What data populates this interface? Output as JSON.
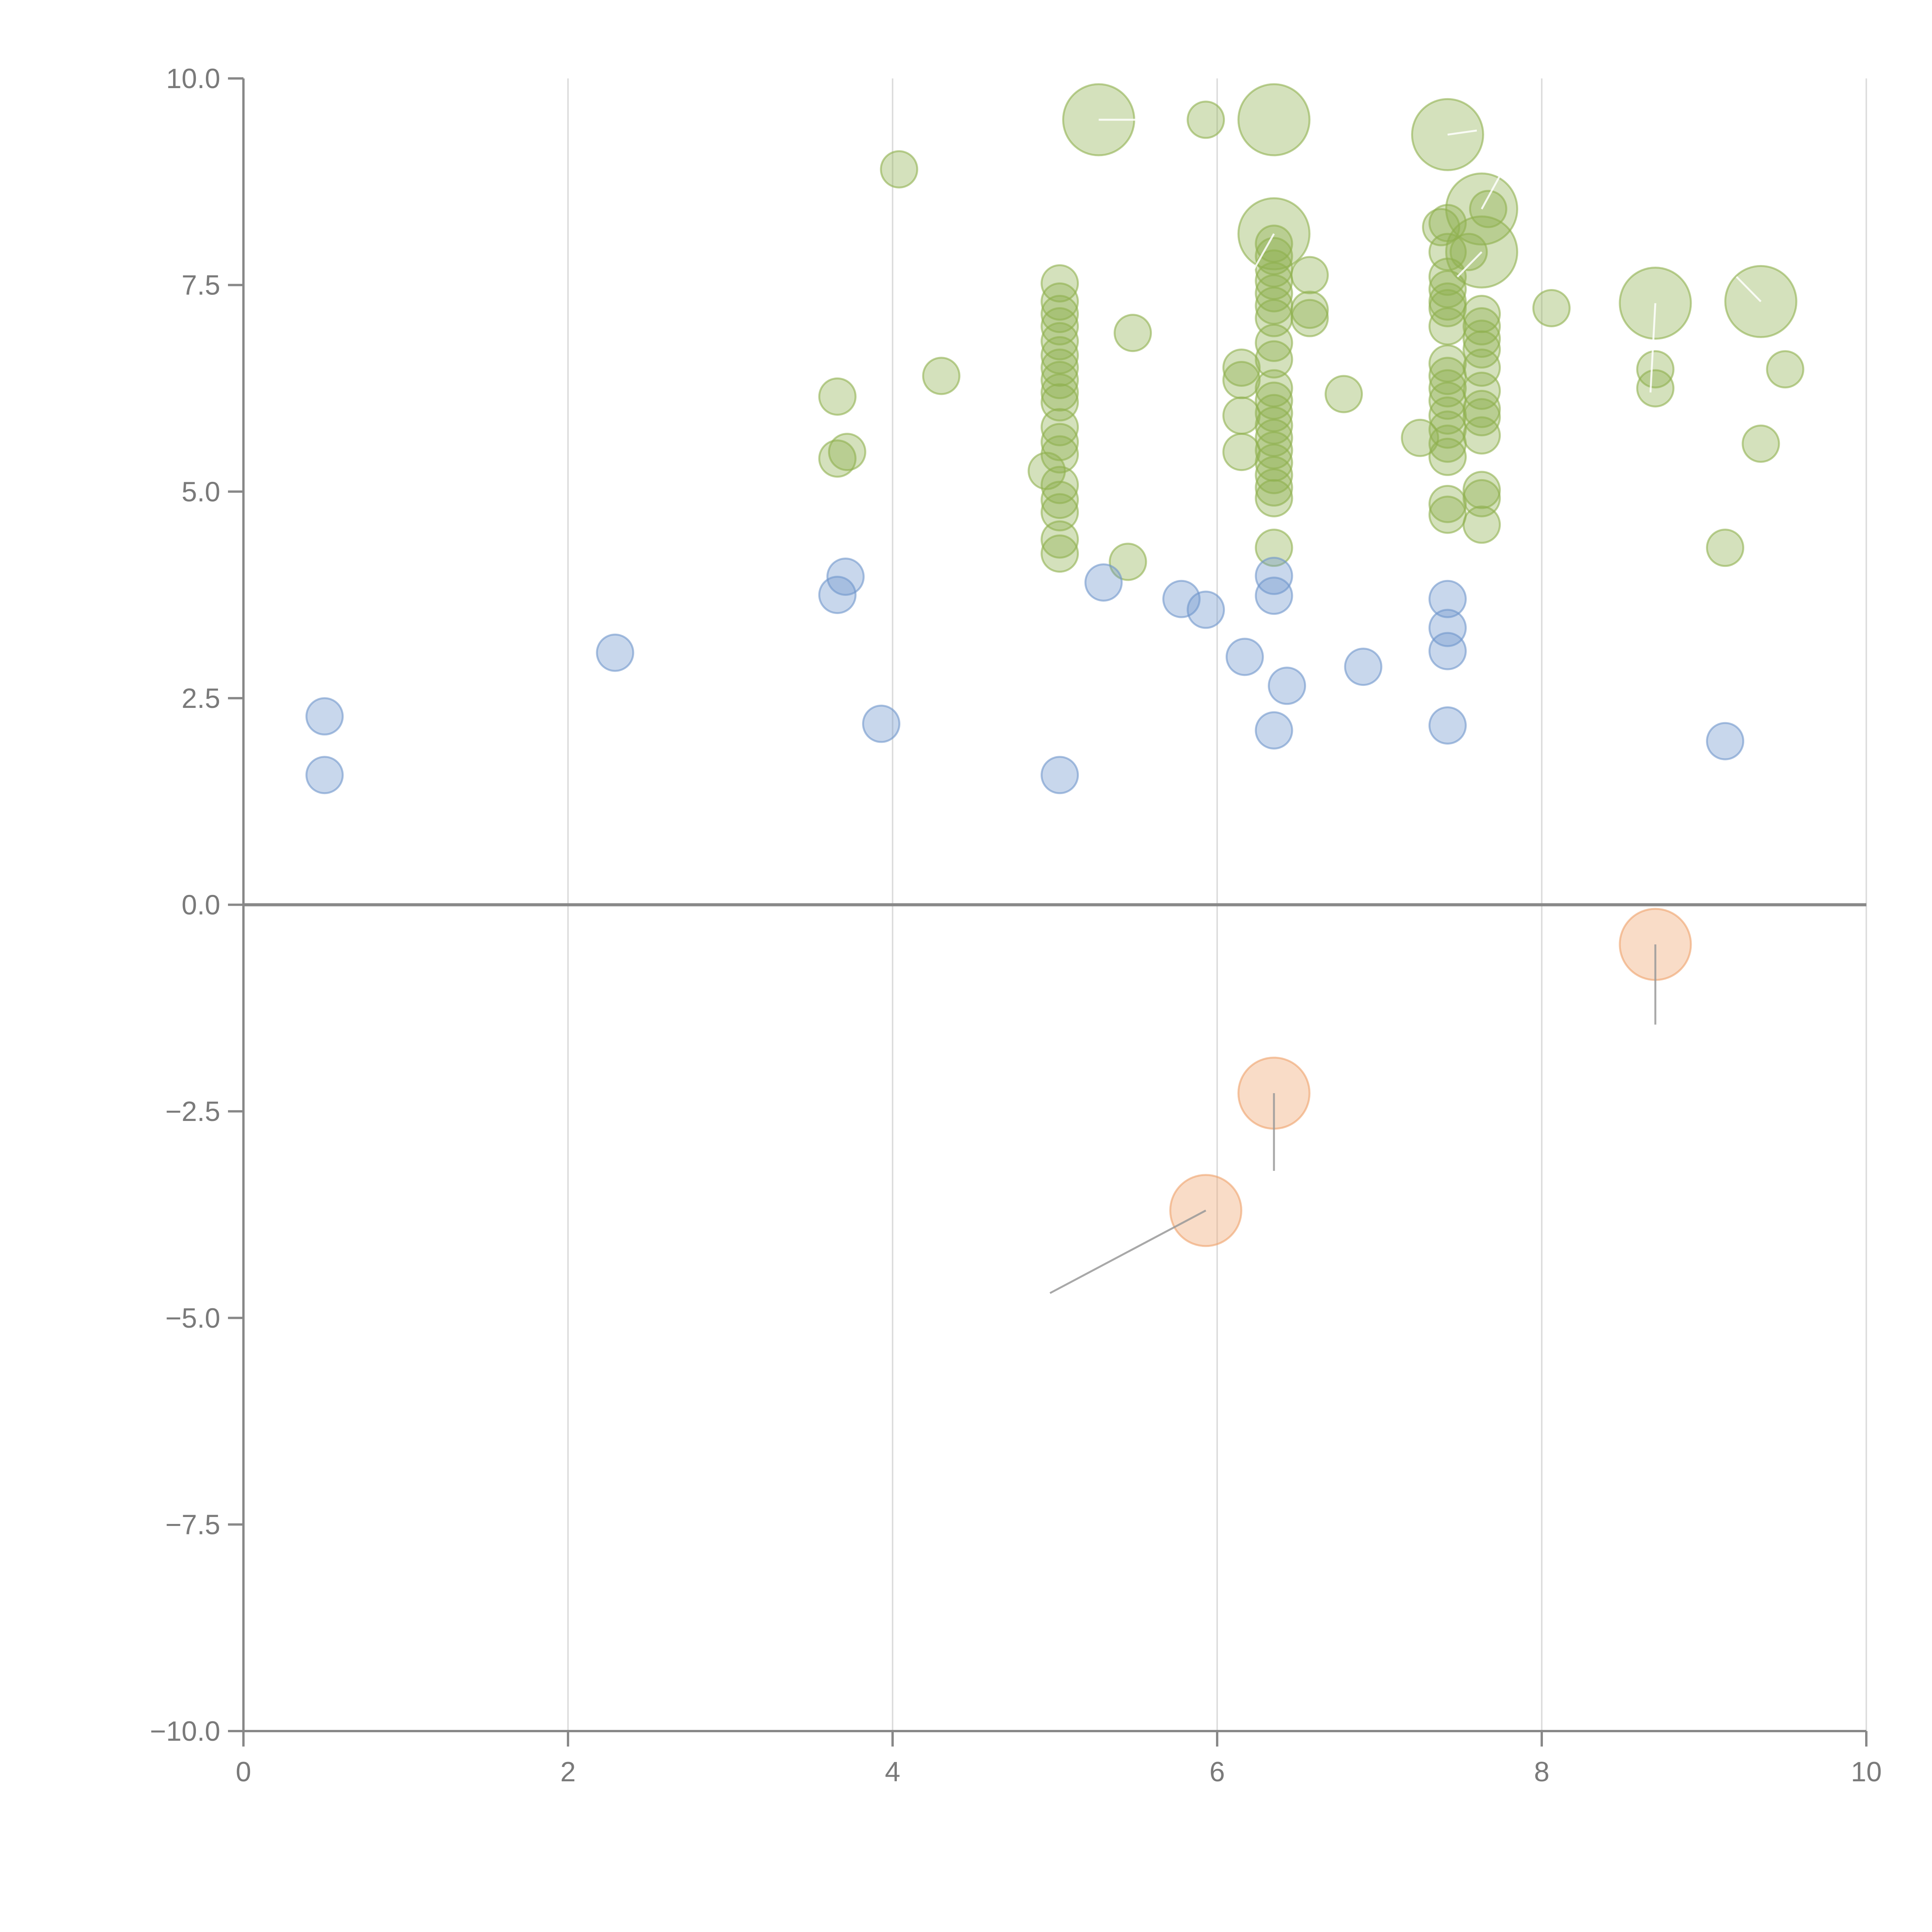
{
  "chart_data": {
    "type": "scatter",
    "xlim": [
      0,
      10
    ],
    "ylim": [
      -10,
      10
    ],
    "x_ticks": [
      0,
      2,
      4,
      6,
      8,
      10
    ],
    "y_ticks": [
      10,
      7.5,
      5,
      2.5,
      0,
      -2.5,
      -5,
      -7.5,
      -10
    ],
    "x_tick_labels": [
      "0",
      "2",
      "4",
      "6",
      "8",
      "10"
    ],
    "y_tick_labels": [
      "10.0",
      "7.5",
      "5.0",
      "2.5",
      "0.0",
      "−2.5",
      "−5.0",
      "−7.5",
      "−10.0"
    ],
    "vertical_grid": true,
    "horizontal_grid": false,
    "zero_line": true,
    "series": [
      {
        "color": "#8fb04f",
        "points": [
          [
            5.27,
            9.5,
            2
          ],
          [
            5.93,
            9.5,
            1
          ],
          [
            6.35,
            9.5,
            2
          ],
          [
            7.42,
            9.32,
            2
          ],
          [
            4.04,
            8.9,
            1
          ],
          [
            7.63,
            8.42,
            2
          ],
          [
            7.63,
            7.9,
            2
          ],
          [
            6.35,
            8.12,
            2
          ],
          [
            7.38,
            8.2,
            1
          ],
          [
            7.42,
            8.25,
            1
          ],
          [
            7.42,
            7.9,
            1
          ],
          [
            7.55,
            7.9,
            1
          ],
          [
            7.67,
            8.42,
            1
          ],
          [
            6.35,
            8.0,
            1
          ],
          [
            6.35,
            7.85,
            1
          ],
          [
            6.35,
            7.7,
            1
          ],
          [
            6.35,
            7.55,
            1
          ],
          [
            6.35,
            7.4,
            1
          ],
          [
            6.35,
            7.25,
            1
          ],
          [
            6.35,
            7.1,
            1
          ],
          [
            6.57,
            7.62,
            1
          ],
          [
            6.57,
            7.2,
            1
          ],
          [
            6.57,
            7.1,
            1
          ],
          [
            5.03,
            7.52,
            1
          ],
          [
            5.03,
            7.3,
            1
          ],
          [
            5.03,
            7.15,
            1
          ],
          [
            5.03,
            7.0,
            1
          ],
          [
            5.03,
            6.82,
            1
          ],
          [
            5.03,
            6.65,
            1
          ],
          [
            5.03,
            6.5,
            1
          ],
          [
            5.03,
            6.35,
            1
          ],
          [
            5.03,
            6.2,
            1
          ],
          [
            5.03,
            6.08,
            1
          ],
          [
            5.03,
            5.78,
            1
          ],
          [
            5.03,
            5.6,
            1
          ],
          [
            5.03,
            5.45,
            1
          ],
          [
            5.03,
            5.08,
            1
          ],
          [
            5.03,
            4.9,
            1
          ],
          [
            5.03,
            4.75,
            1
          ],
          [
            5.03,
            4.42,
            1
          ],
          [
            5.03,
            4.25,
            1
          ],
          [
            4.95,
            5.25,
            1
          ],
          [
            5.48,
            6.92,
            1
          ],
          [
            5.45,
            4.15,
            1
          ],
          [
            4.3,
            6.4,
            1
          ],
          [
            3.66,
            6.15,
            1
          ],
          [
            3.66,
            5.4,
            1
          ],
          [
            3.72,
            5.48,
            1
          ],
          [
            6.15,
            6.5,
            1
          ],
          [
            6.15,
            6.35,
            1
          ],
          [
            6.15,
            5.92,
            1
          ],
          [
            6.15,
            5.48,
            1
          ],
          [
            6.35,
            6.8,
            1
          ],
          [
            6.35,
            6.6,
            1
          ],
          [
            6.35,
            6.25,
            1
          ],
          [
            6.35,
            6.1,
            1
          ],
          [
            6.35,
            5.95,
            1
          ],
          [
            6.35,
            5.8,
            1
          ],
          [
            6.35,
            5.65,
            1
          ],
          [
            6.35,
            5.5,
            1
          ],
          [
            6.35,
            5.35,
            1
          ],
          [
            6.35,
            5.2,
            1
          ],
          [
            6.35,
            5.05,
            1
          ],
          [
            6.35,
            4.92,
            1
          ],
          [
            6.35,
            4.32,
            1
          ],
          [
            6.78,
            6.18,
            1
          ],
          [
            7.25,
            5.65,
            1
          ],
          [
            7.42,
            7.6,
            1
          ],
          [
            7.42,
            7.45,
            1
          ],
          [
            7.42,
            7.3,
            1
          ],
          [
            7.42,
            7.22,
            1
          ],
          [
            7.42,
            7.0,
            1
          ],
          [
            7.42,
            6.55,
            1
          ],
          [
            7.42,
            6.4,
            1
          ],
          [
            7.42,
            6.25,
            1
          ],
          [
            7.42,
            6.1,
            1
          ],
          [
            7.42,
            5.92,
            1
          ],
          [
            7.42,
            5.75,
            1
          ],
          [
            7.42,
            5.58,
            1
          ],
          [
            7.42,
            5.42,
            1
          ],
          [
            7.42,
            4.85,
            1
          ],
          [
            7.42,
            4.72,
            1
          ],
          [
            7.63,
            7.15,
            1
          ],
          [
            7.63,
            7.0,
            1
          ],
          [
            7.63,
            6.85,
            1
          ],
          [
            7.63,
            6.72,
            1
          ],
          [
            7.63,
            6.5,
            1
          ],
          [
            7.63,
            6.22,
            1
          ],
          [
            7.63,
            6.0,
            1
          ],
          [
            7.63,
            5.9,
            1
          ],
          [
            7.63,
            5.68,
            1
          ],
          [
            7.63,
            5.02,
            1
          ],
          [
            7.63,
            4.92,
            1
          ],
          [
            7.63,
            4.6,
            1
          ],
          [
            8.06,
            7.22,
            1
          ],
          [
            8.7,
            7.28,
            2
          ],
          [
            8.7,
            6.48,
            1
          ],
          [
            8.7,
            6.25,
            1
          ],
          [
            9.35,
            7.3,
            2
          ],
          [
            9.5,
            6.48,
            1
          ],
          [
            9.35,
            5.58,
            1
          ],
          [
            9.13,
            4.32,
            1
          ]
        ]
      },
      {
        "color": "#6f96cc",
        "points": [
          [
            0.5,
            2.28,
            1
          ],
          [
            0.5,
            1.57,
            1
          ],
          [
            2.29,
            3.05,
            1
          ],
          [
            3.66,
            3.75,
            1
          ],
          [
            3.71,
            3.97,
            1
          ],
          [
            3.93,
            2.19,
            1
          ],
          [
            5.03,
            1.57,
            1
          ],
          [
            5.3,
            3.9,
            1
          ],
          [
            5.78,
            3.7,
            1
          ],
          [
            5.93,
            3.57,
            1
          ],
          [
            6.17,
            3.0,
            1
          ],
          [
            6.35,
            3.98,
            1
          ],
          [
            6.35,
            3.74,
            1
          ],
          [
            6.43,
            2.65,
            1
          ],
          [
            6.35,
            2.11,
            1
          ],
          [
            6.9,
            2.88,
            1
          ],
          [
            7.42,
            3.7,
            1
          ],
          [
            7.42,
            3.35,
            1
          ],
          [
            7.42,
            3.07,
            1
          ],
          [
            7.42,
            2.17,
            1
          ],
          [
            9.13,
            1.98,
            1
          ]
        ]
      },
      {
        "color": "#eea26b",
        "points": [
          [
            8.7,
            -0.48,
            2
          ],
          [
            6.35,
            -2.28,
            2
          ],
          [
            5.93,
            -3.7,
            2
          ]
        ]
      }
    ],
    "leader_lines": [
      {
        "color": "#ffffff",
        "from": [
          5.27,
          9.5
        ],
        "to": [
          5.57,
          9.5
        ]
      },
      {
        "color": "#ffffff",
        "from": [
          7.42,
          9.32
        ],
        "to": [
          7.6,
          9.37
        ]
      },
      {
        "color": "#ffffff",
        "from": [
          7.63,
          8.42
        ],
        "to": [
          7.75,
          8.85
        ]
      },
      {
        "color": "#ffffff",
        "from": [
          7.63,
          7.9
        ],
        "to": [
          7.48,
          7.6
        ]
      },
      {
        "color": "#ffffff",
        "from": [
          6.35,
          8.12
        ],
        "to": [
          6.2,
          7.6
        ]
      },
      {
        "color": "#ffffff",
        "from": [
          8.7,
          7.28
        ],
        "to": [
          8.67,
          6.2
        ]
      },
      {
        "color": "#ffffff",
        "from": [
          9.35,
          7.3
        ],
        "to": [
          9.2,
          7.6
        ]
      },
      {
        "color": "#999999",
        "from": [
          8.7,
          -0.48
        ],
        "to": [
          8.7,
          -1.45
        ]
      },
      {
        "color": "#999999",
        "from": [
          6.35,
          -2.28
        ],
        "to": [
          6.35,
          -3.22
        ]
      },
      {
        "color": "#999999",
        "from": [
          5.93,
          -3.7
        ],
        "to": [
          4.97,
          -4.7
        ]
      }
    ]
  }
}
